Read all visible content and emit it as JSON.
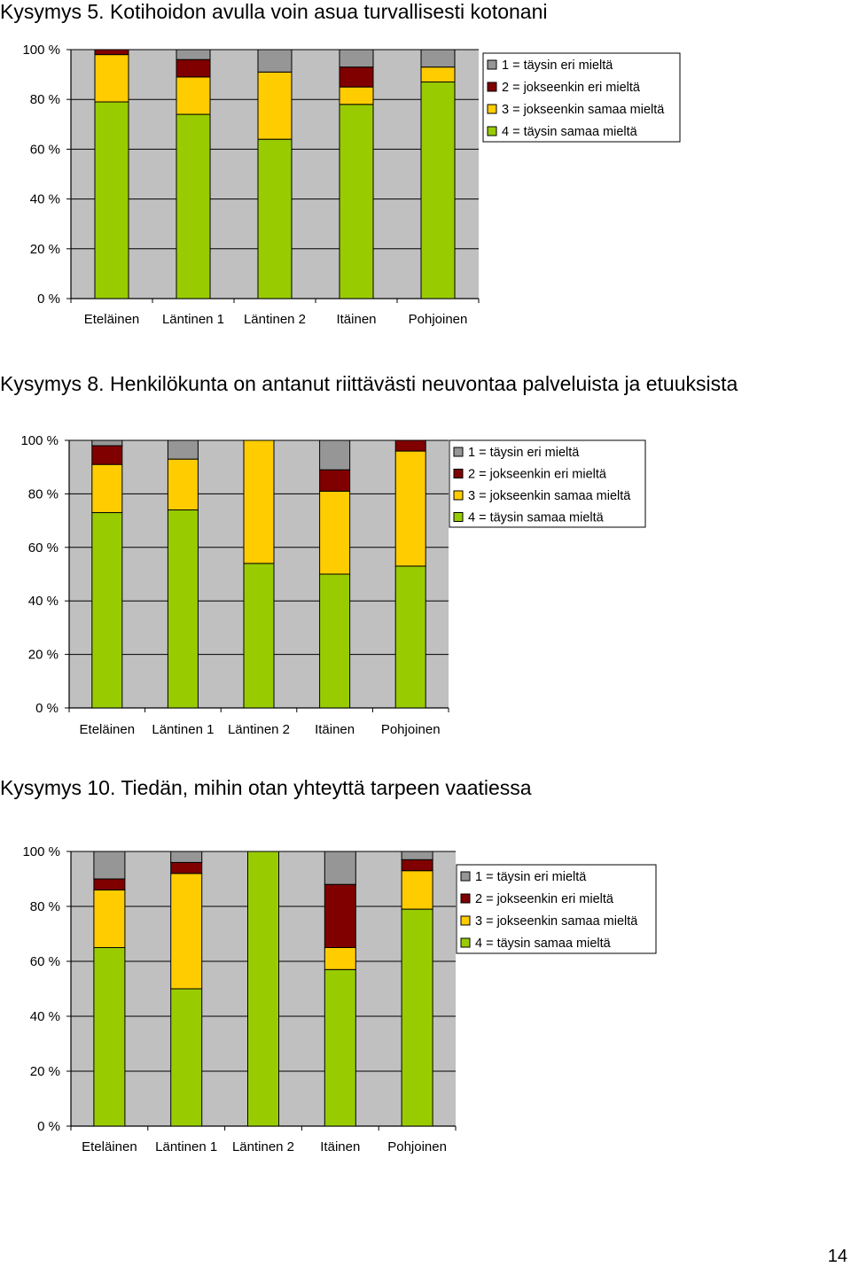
{
  "page_number": "14",
  "colors": {
    "c1": "#969696",
    "c2": "#800000",
    "c3": "#ffcc00",
    "c4": "#99cc00",
    "plot_bg": "#c0c0c0"
  },
  "chart_data": [
    {
      "type": "bar",
      "stacked": true,
      "title": "Kysymys 5. Kotihoidon avulla voin asua turvallisesti kotonani",
      "categories": [
        "Eteläinen",
        "Läntinen 1",
        "Läntinen 2",
        "Itäinen",
        "Pohjoinen"
      ],
      "y_ticks": [
        "0 %",
        "20 %",
        "40 %",
        "60 %",
        "80 %",
        "100 %"
      ],
      "ylim": [
        0,
        100
      ],
      "grid": true,
      "legend_position": "top-right",
      "series": [
        {
          "name": "4 = täysin samaa mieltä",
          "color_key": "c4",
          "values": [
            79,
            74,
            64,
            78,
            87
          ]
        },
        {
          "name": "3 = jokseenkin samaa mieltä",
          "color_key": "c3",
          "values": [
            19,
            15,
            27,
            7,
            6
          ]
        },
        {
          "name": "2 = jokseenkin eri mieltä",
          "color_key": "c2",
          "values": [
            2,
            7,
            0,
            8,
            0
          ]
        },
        {
          "name": "1 = täysin eri mieltä",
          "color_key": "c1",
          "values": [
            0,
            4,
            9,
            7,
            7
          ]
        }
      ]
    },
    {
      "type": "bar",
      "stacked": true,
      "title": "Kysymys 8. Henkilökunta on antanut riittävästi neuvontaa palveluista ja etuuksista",
      "categories": [
        "Eteläinen",
        "Läntinen 1",
        "Läntinen 2",
        "Itäinen",
        "Pohjoinen"
      ],
      "y_ticks": [
        "0 %",
        "20 %",
        "40 %",
        "60 %",
        "80 %",
        "100 %"
      ],
      "ylim": [
        0,
        100
      ],
      "grid": true,
      "legend_position": "top-right",
      "series": [
        {
          "name": "4 = täysin samaa mieltä",
          "color_key": "c4",
          "values": [
            73,
            74,
            54,
            50,
            53
          ]
        },
        {
          "name": "3 = jokseenkin samaa mieltä",
          "color_key": "c3",
          "values": [
            18,
            19,
            46,
            31,
            43
          ]
        },
        {
          "name": "2 = jokseenkin eri mieltä",
          "color_key": "c2",
          "values": [
            7,
            0,
            0,
            8,
            4
          ]
        },
        {
          "name": "1 = täysin eri mieltä",
          "color_key": "c1",
          "values": [
            2,
            7,
            0,
            11,
            0
          ]
        }
      ]
    },
    {
      "type": "bar",
      "stacked": true,
      "title": "Kysymys 10. Tiedän, mihin otan yhteyttä tarpeen vaatiessa",
      "categories": [
        "Eteläinen",
        "Läntinen 1",
        "Läntinen 2",
        "Itäinen",
        "Pohjoinen"
      ],
      "y_ticks": [
        "0 %",
        "20 %",
        "40 %",
        "60 %",
        "80 %",
        "100 %"
      ],
      "ylim": [
        0,
        100
      ],
      "grid": true,
      "legend_position": "top-right",
      "series": [
        {
          "name": "4 = täysin samaa mieltä",
          "color_key": "c4",
          "values": [
            65,
            50,
            100,
            57,
            79
          ]
        },
        {
          "name": "3 = jokseenkin samaa mieltä",
          "color_key": "c3",
          "values": [
            21,
            42,
            0,
            8,
            14
          ]
        },
        {
          "name": "2 = jokseenkin eri mieltä",
          "color_key": "c2",
          "values": [
            4,
            4,
            0,
            23,
            4
          ]
        },
        {
          "name": "1 = täysin eri mieltä",
          "color_key": "c1",
          "values": [
            10,
            4,
            0,
            12,
            3
          ]
        }
      ]
    }
  ]
}
